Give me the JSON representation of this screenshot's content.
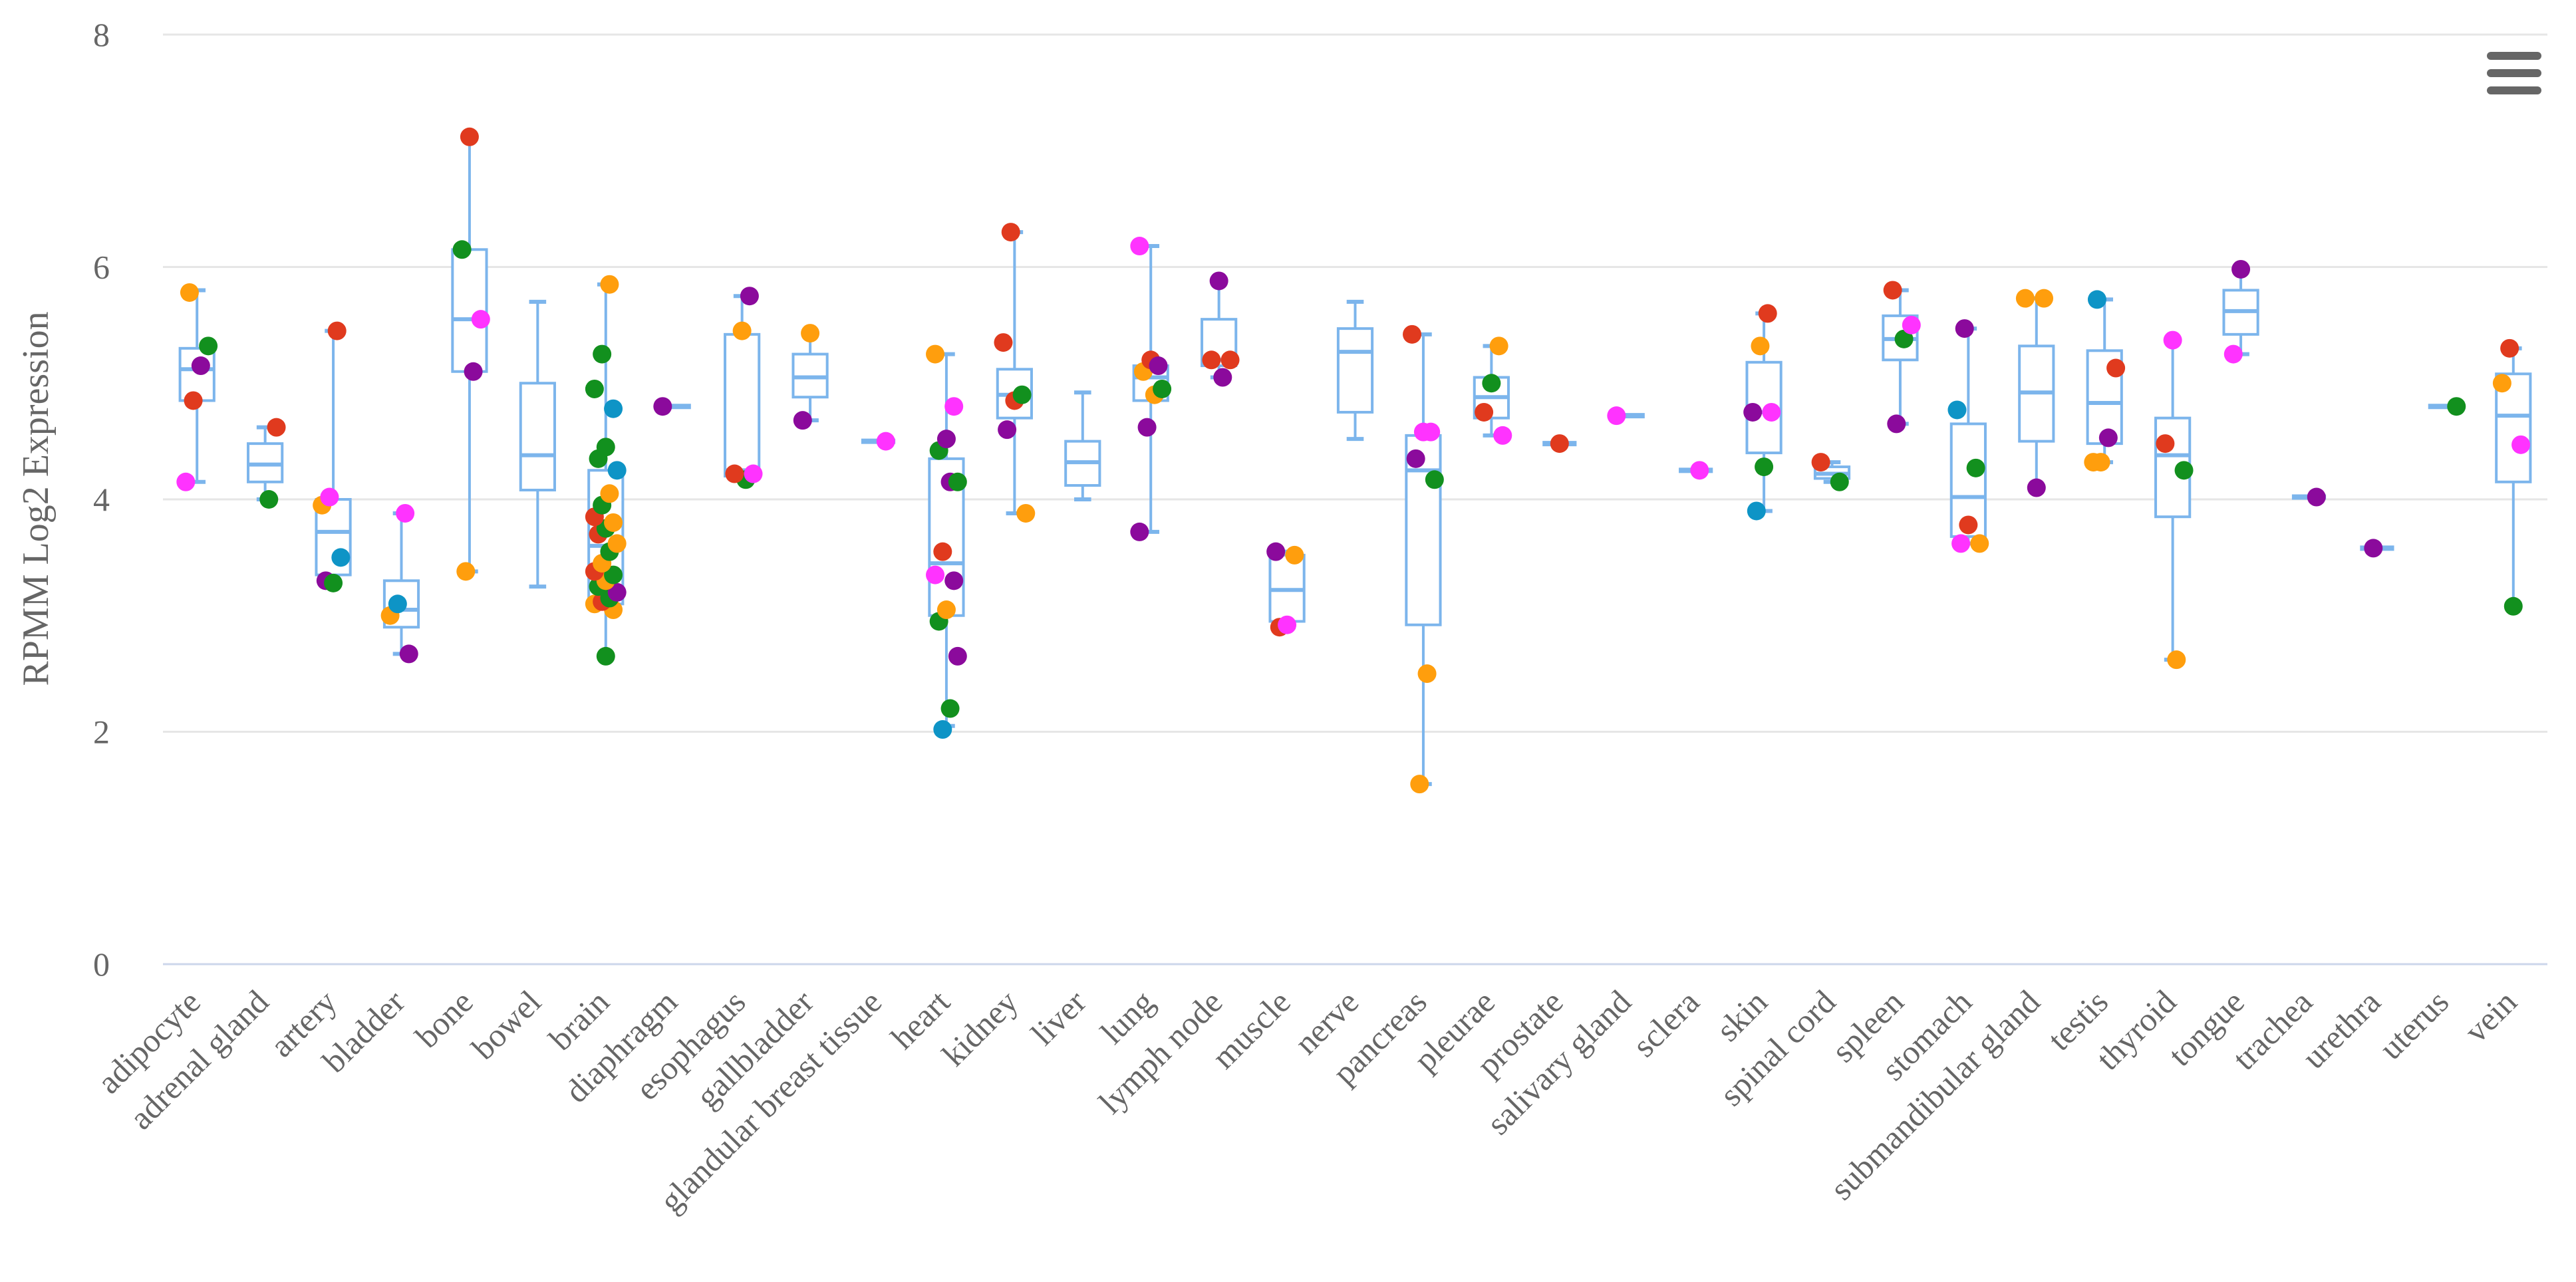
{
  "chart_data": {
    "type": "box",
    "title": "",
    "xlabel": "",
    "ylabel": "RPMM Log2 Expression",
    "ylim": [
      0,
      8
    ],
    "yticks": [
      0,
      2,
      4,
      6,
      8
    ],
    "grid": true,
    "colors": {
      "box": "#7cb5ec",
      "grid": "#e6e6e6",
      "axis": "#ccd6eb",
      "text": "#666666",
      "menu": "#666666"
    },
    "categories": [
      {
        "name": "adipocyte",
        "box": [
          4.15,
          4.85,
          5.12,
          5.3,
          5.8
        ],
        "points": [
          [
            4.15,
            "#ff33ff"
          ],
          [
            4.85,
            "#e03a1e"
          ],
          [
            5.15,
            "#8b0a9c"
          ],
          [
            5.32,
            "#12901e"
          ],
          [
            5.78,
            "#ff9e0d"
          ]
        ]
      },
      {
        "name": "adrenal gland",
        "box": [
          4.0,
          4.15,
          4.3,
          4.48,
          4.62
        ],
        "points": [
          [
            4.0,
            "#12901e"
          ],
          [
            4.62,
            "#e03a1e"
          ]
        ]
      },
      {
        "name": "artery",
        "box": [
          3.28,
          3.35,
          3.72,
          4.0,
          5.45
        ],
        "points": [
          [
            3.3,
            "#8b0a9c"
          ],
          [
            3.28,
            "#12901e"
          ],
          [
            3.5,
            "#0e94c6"
          ],
          [
            3.95,
            "#ff9e0d"
          ],
          [
            4.02,
            "#ff33ff"
          ],
          [
            5.45,
            "#e03a1e"
          ]
        ]
      },
      {
        "name": "bladder",
        "box": [
          2.67,
          2.9,
          3.05,
          3.3,
          3.88
        ],
        "points": [
          [
            2.67,
            "#8b0a9c"
          ],
          [
            3.0,
            "#ff9e0d"
          ],
          [
            3.1,
            "#0e94c6"
          ],
          [
            3.88,
            "#ff33ff"
          ]
        ]
      },
      {
        "name": "bone",
        "box": [
          3.38,
          5.1,
          5.55,
          6.15,
          7.12
        ],
        "points": [
          [
            3.38,
            "#ff9e0d"
          ],
          [
            5.1,
            "#8b0a9c"
          ],
          [
            5.55,
            "#ff33ff"
          ],
          [
            6.15,
            "#12901e"
          ],
          [
            7.12,
            "#e03a1e"
          ]
        ]
      },
      {
        "name": "bowel",
        "box": [
          3.25,
          4.08,
          4.38,
          5.0,
          5.7
        ],
        "points": []
      },
      {
        "name": "brain",
        "box": [
          2.65,
          3.1,
          3.6,
          4.25,
          5.85
        ],
        "points": [
          [
            2.65,
            "#12901e"
          ],
          [
            3.05,
            "#ff9e0d"
          ],
          [
            3.1,
            "#ff9e0d"
          ],
          [
            3.12,
            "#e03a1e"
          ],
          [
            3.15,
            "#12901e"
          ],
          [
            3.2,
            "#8b0a9c"
          ],
          [
            3.25,
            "#12901e"
          ],
          [
            3.3,
            "#ff9e0d"
          ],
          [
            3.35,
            "#12901e"
          ],
          [
            3.38,
            "#e03a1e"
          ],
          [
            3.45,
            "#ff9e0d"
          ],
          [
            3.55,
            "#12901e"
          ],
          [
            3.62,
            "#ff9e0d"
          ],
          [
            3.7,
            "#e03a1e"
          ],
          [
            3.75,
            "#12901e"
          ],
          [
            3.8,
            "#ff9e0d"
          ],
          [
            3.85,
            "#e03a1e"
          ],
          [
            3.95,
            "#12901e"
          ],
          [
            4.05,
            "#ff9e0d"
          ],
          [
            4.25,
            "#0e94c6"
          ],
          [
            4.35,
            "#12901e"
          ],
          [
            4.45,
            "#12901e"
          ],
          [
            4.78,
            "#0e94c6"
          ],
          [
            4.95,
            "#12901e"
          ],
          [
            5.25,
            "#12901e"
          ],
          [
            5.85,
            "#ff9e0d"
          ]
        ]
      },
      {
        "name": "diaphragm",
        "box": [
          4.8,
          4.8,
          4.8,
          4.8,
          4.8
        ],
        "points": [
          [
            4.8,
            "#8b0a9c"
          ]
        ]
      },
      {
        "name": "esophagus",
        "box": [
          4.17,
          4.2,
          4.25,
          5.42,
          5.75
        ],
        "points": [
          [
            4.17,
            "#12901e"
          ],
          [
            4.22,
            "#ff33ff"
          ],
          [
            4.22,
            "#e03a1e"
          ],
          [
            5.45,
            "#ff9e0d"
          ],
          [
            5.75,
            "#8b0a9c"
          ]
        ]
      },
      {
        "name": "gallbladder",
        "box": [
          4.68,
          4.88,
          5.05,
          5.25,
          5.43
        ],
        "points": [
          [
            4.68,
            "#8b0a9c"
          ],
          [
            5.43,
            "#ff9e0d"
          ]
        ]
      },
      {
        "name": "glandular breast tissue",
        "box": [
          4.5,
          4.5,
          4.5,
          4.5,
          4.5
        ],
        "points": [
          [
            4.5,
            "#ff33ff"
          ]
        ]
      },
      {
        "name": "heart",
        "box": [
          2.05,
          3.0,
          3.45,
          4.35,
          5.25
        ],
        "points": [
          [
            2.02,
            "#0e94c6"
          ],
          [
            2.2,
            "#12901e"
          ],
          [
            2.65,
            "#8b0a9c"
          ],
          [
            2.95,
            "#12901e"
          ],
          [
            3.05,
            "#ff9e0d"
          ],
          [
            3.3,
            "#8b0a9c"
          ],
          [
            3.35,
            "#ff33ff"
          ],
          [
            3.55,
            "#e03a1e"
          ],
          [
            4.15,
            "#8b0a9c"
          ],
          [
            4.15,
            "#12901e"
          ],
          [
            4.42,
            "#12901e"
          ],
          [
            4.52,
            "#8b0a9c"
          ],
          [
            4.8,
            "#ff33ff"
          ],
          [
            5.25,
            "#ff9e0d"
          ]
        ]
      },
      {
        "name": "kidney",
        "box": [
          3.88,
          4.7,
          4.9,
          5.12,
          6.3
        ],
        "points": [
          [
            3.88,
            "#ff9e0d"
          ],
          [
            4.6,
            "#8b0a9c"
          ],
          [
            4.85,
            "#e03a1e"
          ],
          [
            4.9,
            "#12901e"
          ],
          [
            5.35,
            "#e03a1e"
          ],
          [
            6.3,
            "#e03a1e"
          ]
        ]
      },
      {
        "name": "liver",
        "box": [
          4.0,
          4.12,
          4.32,
          4.5,
          4.92
        ],
        "points": []
      },
      {
        "name": "lung",
        "box": [
          3.72,
          4.85,
          5.05,
          5.15,
          6.18
        ],
        "points": [
          [
            3.72,
            "#8b0a9c"
          ],
          [
            4.62,
            "#8b0a9c"
          ],
          [
            4.9,
            "#ff9e0d"
          ],
          [
            4.95,
            "#12901e"
          ],
          [
            5.1,
            "#ff9e0d"
          ],
          [
            5.2,
            "#e03a1e"
          ],
          [
            5.15,
            "#8b0a9c"
          ],
          [
            6.18,
            "#ff33ff"
          ]
        ]
      },
      {
        "name": "lymph node",
        "box": [
          5.05,
          5.15,
          5.2,
          5.55,
          5.88
        ],
        "points": [
          [
            5.05,
            "#8b0a9c"
          ],
          [
            5.2,
            "#e03a1e"
          ],
          [
            5.2,
            "#e03a1e"
          ],
          [
            5.88,
            "#8b0a9c"
          ]
        ]
      },
      {
        "name": "muscle",
        "box": [
          2.9,
          2.95,
          3.22,
          3.52,
          3.55
        ],
        "points": [
          [
            2.9,
            "#e03a1e"
          ],
          [
            2.92,
            "#ff33ff"
          ],
          [
            3.52,
            "#ff9e0d"
          ],
          [
            3.55,
            "#8b0a9c"
          ]
        ]
      },
      {
        "name": "nerve",
        "box": [
          4.52,
          4.75,
          5.27,
          5.47,
          5.7
        ],
        "points": []
      },
      {
        "name": "pancreas",
        "box": [
          1.55,
          2.92,
          4.25,
          4.55,
          5.42
        ],
        "points": [
          [
            1.55,
            "#ff9e0d"
          ],
          [
            2.5,
            "#ff9e0d"
          ],
          [
            4.17,
            "#12901e"
          ],
          [
            4.35,
            "#8b0a9c"
          ],
          [
            4.58,
            "#ff33ff"
          ],
          [
            4.58,
            "#ff33ff"
          ],
          [
            5.42,
            "#e03a1e"
          ]
        ]
      },
      {
        "name": "pleurae",
        "box": [
          4.55,
          4.7,
          4.88,
          5.05,
          5.32
        ],
        "points": [
          [
            4.55,
            "#ff33ff"
          ],
          [
            4.75,
            "#e03a1e"
          ],
          [
            5.0,
            "#12901e"
          ],
          [
            5.32,
            "#ff9e0d"
          ]
        ]
      },
      {
        "name": "prostate",
        "box": [
          4.48,
          4.48,
          4.48,
          4.48,
          4.48
        ],
        "points": [
          [
            4.48,
            "#e03a1e"
          ]
        ]
      },
      {
        "name": "salivary gland",
        "box": [
          4.72,
          4.72,
          4.72,
          4.72,
          4.72
        ],
        "points": [
          [
            4.72,
            "#ff33ff"
          ]
        ]
      },
      {
        "name": "sclera",
        "box": [
          4.25,
          4.25,
          4.25,
          4.25,
          4.25
        ],
        "points": [
          [
            4.25,
            "#ff33ff"
          ]
        ]
      },
      {
        "name": "skin",
        "box": [
          3.9,
          4.4,
          4.75,
          5.18,
          5.6
        ],
        "points": [
          [
            3.9,
            "#0e94c6"
          ],
          [
            4.28,
            "#12901e"
          ],
          [
            4.75,
            "#ff33ff"
          ],
          [
            4.75,
            "#8b0a9c"
          ],
          [
            5.32,
            "#ff9e0d"
          ],
          [
            5.6,
            "#e03a1e"
          ]
        ]
      },
      {
        "name": "spinal cord",
        "box": [
          4.15,
          4.18,
          4.22,
          4.28,
          4.32
        ],
        "points": [
          [
            4.15,
            "#12901e"
          ],
          [
            4.32,
            "#e03a1e"
          ]
        ]
      },
      {
        "name": "spleen",
        "box": [
          4.65,
          5.2,
          5.38,
          5.58,
          5.8
        ],
        "points": [
          [
            4.65,
            "#8b0a9c"
          ],
          [
            5.38,
            "#12901e"
          ],
          [
            5.5,
            "#ff33ff"
          ],
          [
            5.8,
            "#e03a1e"
          ]
        ]
      },
      {
        "name": "stomach",
        "box": [
          3.62,
          3.68,
          4.02,
          4.65,
          5.47
        ],
        "points": [
          [
            3.62,
            "#ff9e0d"
          ],
          [
            3.62,
            "#ff33ff"
          ],
          [
            3.78,
            "#e03a1e"
          ],
          [
            4.27,
            "#12901e"
          ],
          [
            4.77,
            "#0e94c6"
          ],
          [
            5.47,
            "#8b0a9c"
          ]
        ]
      },
      {
        "name": "submandibular gland",
        "box": [
          4.1,
          4.5,
          4.92,
          5.32,
          5.73
        ],
        "points": [
          [
            4.1,
            "#8b0a9c"
          ],
          [
            5.73,
            "#ff9e0d"
          ],
          [
            5.73,
            "#ff9e0d"
          ]
        ]
      },
      {
        "name": "testis",
        "box": [
          4.32,
          4.48,
          4.83,
          5.28,
          5.72
        ],
        "points": [
          [
            4.32,
            "#ff9e0d"
          ],
          [
            4.32,
            "#ff9e0d"
          ],
          [
            4.53,
            "#8b0a9c"
          ],
          [
            5.13,
            "#e03a1e"
          ],
          [
            5.72,
            "#0e94c6"
          ]
        ]
      },
      {
        "name": "thyroid",
        "box": [
          2.62,
          3.85,
          4.38,
          4.7,
          5.37
        ],
        "points": [
          [
            2.62,
            "#ff9e0d"
          ],
          [
            4.25,
            "#12901e"
          ],
          [
            4.48,
            "#e03a1e"
          ],
          [
            5.37,
            "#ff33ff"
          ]
        ]
      },
      {
        "name": "tongue",
        "box": [
          5.25,
          5.42,
          5.62,
          5.8,
          5.98
        ],
        "points": [
          [
            5.25,
            "#ff33ff"
          ],
          [
            5.98,
            "#8b0a9c"
          ]
        ]
      },
      {
        "name": "trachea",
        "box": [
          4.02,
          4.02,
          4.02,
          4.02,
          4.02
        ],
        "points": [
          [
            4.02,
            "#8b0a9c"
          ]
        ]
      },
      {
        "name": "urethra",
        "box": [
          3.58,
          3.58,
          3.58,
          3.58,
          3.58
        ],
        "points": [
          [
            3.58,
            "#8b0a9c"
          ]
        ]
      },
      {
        "name": "uterus",
        "box": [
          4.8,
          4.8,
          4.8,
          4.8,
          4.8
        ],
        "points": [
          [
            4.8,
            "#12901e"
          ]
        ]
      },
      {
        "name": "vein",
        "box": [
          3.08,
          4.15,
          4.72,
          5.08,
          5.3
        ],
        "points": [
          [
            3.08,
            "#12901e"
          ],
          [
            4.47,
            "#ff33ff"
          ],
          [
            5.0,
            "#ff9e0d"
          ],
          [
            5.3,
            "#e03a1e"
          ]
        ]
      }
    ]
  }
}
